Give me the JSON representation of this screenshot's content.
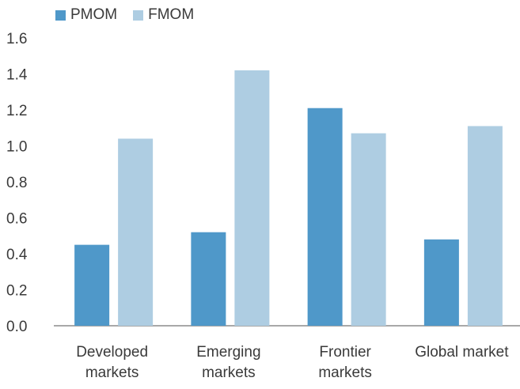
{
  "chart_data": {
    "type": "bar",
    "title": "",
    "xlabel": "",
    "ylabel": "",
    "categories": [
      [
        "Developed",
        "markets"
      ],
      [
        "Emerging",
        "markets"
      ],
      [
        "Frontier",
        "markets"
      ],
      [
        "Global market"
      ]
    ],
    "series": [
      {
        "name": "PMOM",
        "color": "#4f98c9",
        "values": [
          0.45,
          0.52,
          1.21,
          0.48
        ]
      },
      {
        "name": "FMOM",
        "color": "#aecde2",
        "values": [
          1.04,
          1.42,
          1.07,
          1.11
        ]
      }
    ],
    "ylim": [
      0,
      1.6
    ],
    "yticks": [
      "0.0",
      "0.2",
      "0.4",
      "0.6",
      "0.8",
      "1.0",
      "1.2",
      "1.4",
      "1.6"
    ],
    "grid": false,
    "legend_position": "top-left"
  }
}
